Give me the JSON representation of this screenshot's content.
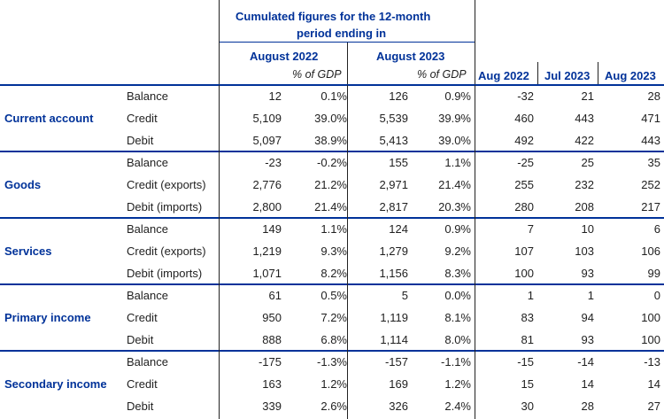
{
  "header": {
    "cumulated_title_line1": "Cumulated figures for the 12-month",
    "cumulated_title_line2": "period ending in",
    "period1": "August 2022",
    "period2": "August 2023",
    "pct_gdp": "% of GDP",
    "month1": "Aug 2022",
    "month2": "Jul 2023",
    "month3": "Aug 2023"
  },
  "sections": [
    {
      "name": "Current account",
      "rows": [
        {
          "label": "Balance",
          "v1": "12",
          "p1": "0.1%",
          "v2": "126",
          "p2": "0.9%",
          "m1": "-32",
          "m2": "21",
          "m3": "28"
        },
        {
          "label": "Credit",
          "v1": "5,109",
          "p1": "39.0%",
          "v2": "5,539",
          "p2": "39.9%",
          "m1": "460",
          "m2": "443",
          "m3": "471"
        },
        {
          "label": "Debit",
          "v1": "5,097",
          "p1": "38.9%",
          "v2": "5,413",
          "p2": "39.0%",
          "m1": "492",
          "m2": "422",
          "m3": "443"
        }
      ]
    },
    {
      "name": "Goods",
      "rows": [
        {
          "label": "Balance",
          "v1": "-23",
          "p1": "-0.2%",
          "v2": "155",
          "p2": "1.1%",
          "m1": "-25",
          "m2": "25",
          "m3": "35"
        },
        {
          "label": "Credit (exports)",
          "v1": "2,776",
          "p1": "21.2%",
          "v2": "2,971",
          "p2": "21.4%",
          "m1": "255",
          "m2": "232",
          "m3": "252"
        },
        {
          "label": "Debit (imports)",
          "v1": "2,800",
          "p1": "21.4%",
          "v2": "2,817",
          "p2": "20.3%",
          "m1": "280",
          "m2": "208",
          "m3": "217"
        }
      ]
    },
    {
      "name": "Services",
      "rows": [
        {
          "label": "Balance",
          "v1": "149",
          "p1": "1.1%",
          "v2": "124",
          "p2": "0.9%",
          "m1": "7",
          "m2": "10",
          "m3": "6"
        },
        {
          "label": "Credit (exports)",
          "v1": "1,219",
          "p1": "9.3%",
          "v2": "1,279",
          "p2": "9.2%",
          "m1": "107",
          "m2": "103",
          "m3": "106"
        },
        {
          "label": "Debit (imports)",
          "v1": "1,071",
          "p1": "8.2%",
          "v2": "1,156",
          "p2": "8.3%",
          "m1": "100",
          "m2": "93",
          "m3": "99"
        }
      ]
    },
    {
      "name": "Primary income",
      "rows": [
        {
          "label": "Balance",
          "v1": "61",
          "p1": "0.5%",
          "v2": "5",
          "p2": "0.0%",
          "m1": "1",
          "m2": "1",
          "m3": "0"
        },
        {
          "label": "Credit",
          "v1": "950",
          "p1": "7.2%",
          "v2": "1,119",
          "p2": "8.1%",
          "m1": "83",
          "m2": "94",
          "m3": "100"
        },
        {
          "label": "Debit",
          "v1": "888",
          "p1": "6.8%",
          "v2": "1,114",
          "p2": "8.0%",
          "m1": "81",
          "m2": "93",
          "m3": "100"
        }
      ]
    },
    {
      "name": "Secondary income",
      "rows": [
        {
          "label": "Balance",
          "v1": "-175",
          "p1": "-1.3%",
          "v2": "-157",
          "p2": "-1.1%",
          "m1": "-15",
          "m2": "-14",
          "m3": "-13"
        },
        {
          "label": "Credit",
          "v1": "163",
          "p1": "1.2%",
          "v2": "169",
          "p2": "1.2%",
          "m1": "15",
          "m2": "14",
          "m3": "14"
        },
        {
          "label": "Debit",
          "v1": "339",
          "p1": "2.6%",
          "v2": "326",
          "p2": "2.4%",
          "m1": "30",
          "m2": "28",
          "m3": "27"
        }
      ]
    }
  ]
}
